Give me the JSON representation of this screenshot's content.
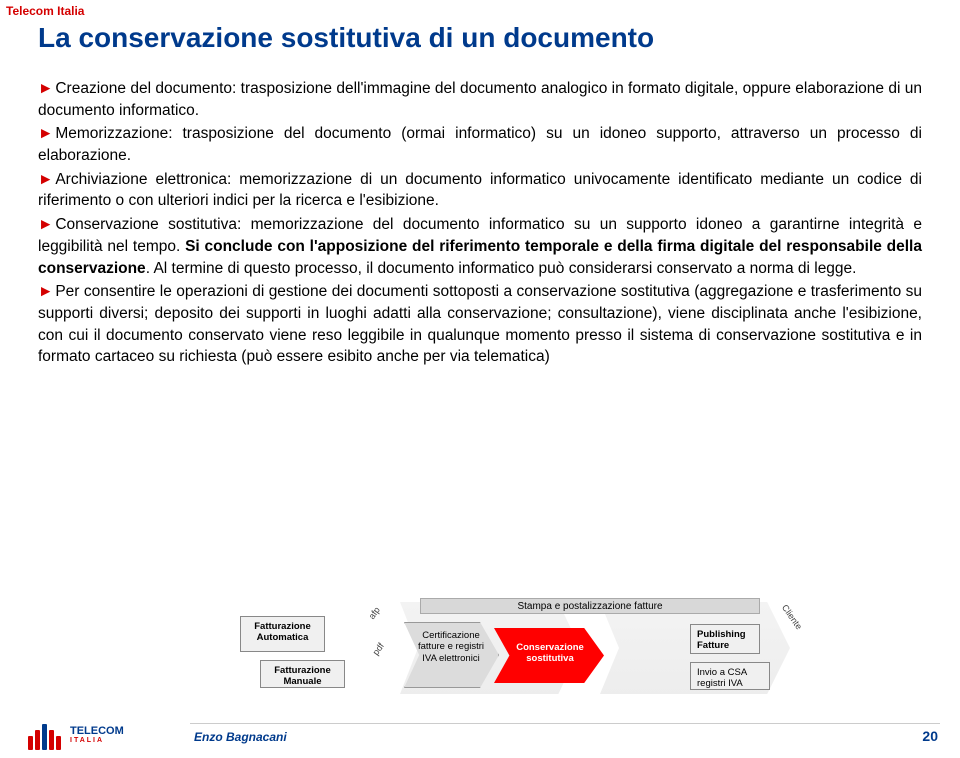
{
  "header": {
    "brand": "Telecom Italia"
  },
  "title": "La conservazione sostitutiva di un documento",
  "bullets": [
    {
      "lead": "",
      "text": "Creazione del documento: trasposizione dell'immagine del documento analogico in formato digitale, oppure elaborazione di un documento informatico."
    },
    {
      "lead": "",
      "text": "Memorizzazione: trasposizione del documento (ormai informatico) su un idoneo supporto, attraverso un processo di elaborazione."
    },
    {
      "lead": "",
      "text": "Archiviazione elettronica: memorizzazione di un documento informatico univocamente identificato mediante un codice di riferimento o con ulteriori indici per la ricerca e l'esibizione."
    },
    {
      "lead": "",
      "text": "Conservazione sostitutiva: memorizzazione del documento informatico su un supporto idoneo a garantirne integrità e leggibilità nel tempo. ",
      "bold": "Si conclude con l'apposizione del riferimento temporale e della firma digitale del responsabile della conservazione",
      "tail": ". Al termine di questo processo, il documento informatico può considerarsi conservato a norma di legge."
    },
    {
      "lead": "",
      "text": "Per consentire le operazioni di gestione dei documenti sottoposti a conservazione sostitutiva (aggregazione e trasferimento su supporti diversi; deposito dei supporti in luoghi adatti alla conservazione; consultazione), viene disciplinata anche l'esibizione, con cui il documento conservato viene reso leggibile in qualunque momento presso il sistema di conservazione sostitutiva e in formato cartaceo su richiesta (può essere esibito anche per via telematica)"
    }
  ],
  "flow": {
    "stampa": "Stampa e postalizzazione fatture",
    "fa": "Fatturazione Automatica",
    "fm": "Fatturazione Manuale",
    "cert": "Certificazione fatture e registri IVA elettronici",
    "cons": "Conservazione sostitutiva",
    "pub": "Publishing Fatture",
    "invio": "Invio a CSA registri IVA",
    "afp": "afp",
    "pdf": "pdf",
    "cliente": "Cliente"
  },
  "footer": {
    "logo_main": "TELECOM",
    "logo_sub": "ITALIA",
    "author": "Enzo Bagnacani",
    "page": "20"
  },
  "colors": {
    "red": "#d40000",
    "blue": "#003a8c",
    "highlight_bg": "#ff0000"
  }
}
